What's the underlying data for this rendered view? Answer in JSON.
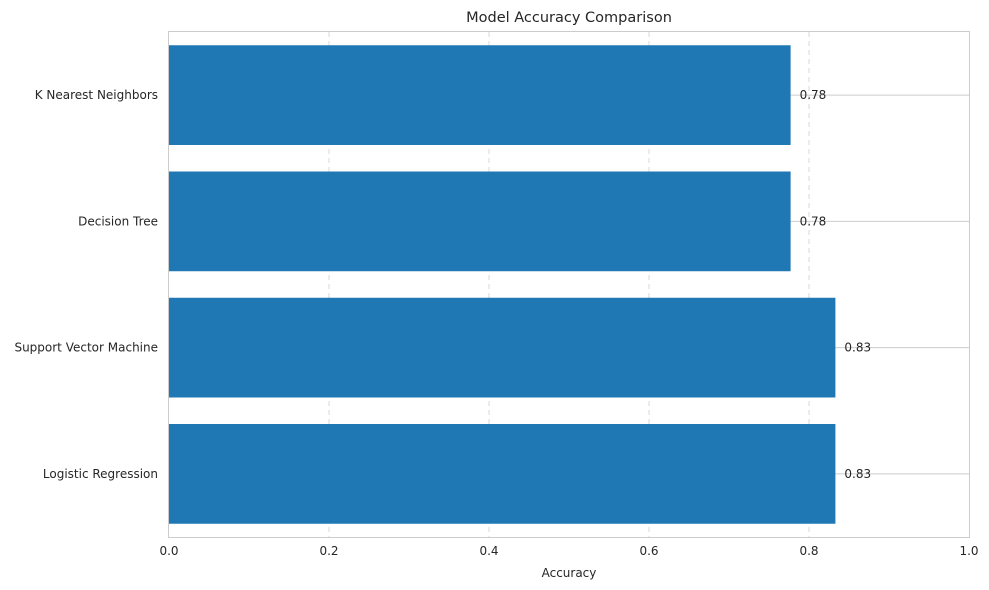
{
  "chart_data": {
    "type": "bar",
    "orientation": "horizontal",
    "title": "Model Accuracy Comparison",
    "xlabel": "Accuracy",
    "ylabel": "",
    "xlim": [
      0,
      1.0
    ],
    "xticks": [
      "0.0",
      "0.2",
      "0.4",
      "0.6",
      "0.8",
      "1.0"
    ],
    "grid": true,
    "categories": [
      "Logistic Regression",
      "Support Vector Machine",
      "Decision Tree",
      "K Nearest Neighbors"
    ],
    "values": [
      0.833,
      0.833,
      0.777,
      0.777
    ],
    "data_labels": [
      "0.83",
      "0.83",
      "0.78",
      "0.78"
    ],
    "bar_color": "#1f77b4"
  }
}
